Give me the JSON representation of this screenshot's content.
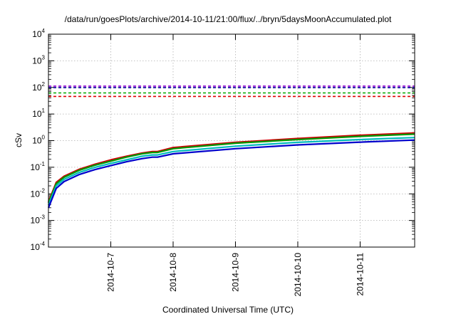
{
  "chart_data": {
    "type": "line",
    "title": "/data/run/goesPlots/archive/2014-10-11/21:00/flux/../bryn/5daysMoonAccumulated.plot",
    "xlabel": "Coordinated Universal Time (UTC)",
    "ylabel": "cSv",
    "y_scale": "log",
    "ylim": [
      0.0001,
      10000
    ],
    "y_ticks": [
      {
        "base": "10",
        "exp": "-4",
        "value": 0.0001
      },
      {
        "base": "10",
        "exp": "-3",
        "value": 0.001
      },
      {
        "base": "10",
        "exp": "-2",
        "value": 0.01
      },
      {
        "base": "10",
        "exp": "-1",
        "value": 0.1
      },
      {
        "base": "10",
        "exp": "0",
        "value": 1
      },
      {
        "base": "10",
        "exp": "1",
        "value": 10
      },
      {
        "base": "10",
        "exp": "2",
        "value": 100
      },
      {
        "base": "10",
        "exp": "3",
        "value": 1000
      },
      {
        "base": "10",
        "exp": "4",
        "value": 10000
      }
    ],
    "xlim": [
      "2014-10-06 00:00",
      "2014-10-11 21:00"
    ],
    "x_ticks": [
      "2014-10-7",
      "2014-10-8",
      "2014-10-9",
      "2014-10-10",
      "2014-10-11"
    ],
    "x_tick_dates": [
      "2014-10-07 00:00",
      "2014-10-08 00:00",
      "2014-10-09 00:00",
      "2014-10-10 00:00",
      "2014-10-11 00:00"
    ],
    "grid": true,
    "legend": "none",
    "series": [
      {
        "color": "#cc0000",
        "style": "solid",
        "width": 2.2,
        "x": [
          "2014-10-06 00:00",
          "2014-10-06 03:00",
          "2014-10-06 06:00",
          "2014-10-06 12:00",
          "2014-10-06 18:00",
          "2014-10-07 00:00",
          "2014-10-07 06:00",
          "2014-10-07 12:00",
          "2014-10-07 16:00",
          "2014-10-07 18:00",
          "2014-10-08 00:00",
          "2014-10-09 00:00",
          "2014-10-10 00:00",
          "2014-10-11 00:00",
          "2014-10-11 21:00"
        ],
        "y": [
          0.005,
          0.027,
          0.046,
          0.085,
          0.13,
          0.19,
          0.26,
          0.34,
          0.39,
          0.39,
          0.55,
          0.87,
          1.2,
          1.6,
          1.95
        ]
      },
      {
        "color": "#009900",
        "style": "solid",
        "width": 2.2,
        "x": [
          "2014-10-06 00:00",
          "2014-10-06 03:00",
          "2014-10-06 06:00",
          "2014-10-06 12:00",
          "2014-10-06 18:00",
          "2014-10-07 00:00",
          "2014-10-07 06:00",
          "2014-10-07 12:00",
          "2014-10-07 16:00",
          "2014-10-07 18:00",
          "2014-10-08 00:00",
          "2014-10-09 00:00",
          "2014-10-10 00:00",
          "2014-10-11 00:00",
          "2014-10-11 21:00"
        ],
        "y": [
          0.0045,
          0.024,
          0.042,
          0.078,
          0.12,
          0.17,
          0.24,
          0.32,
          0.36,
          0.36,
          0.5,
          0.8,
          1.1,
          1.45,
          1.75
        ]
      },
      {
        "color": "#00bbbb",
        "style": "solid",
        "width": 2.2,
        "x": [
          "2014-10-06 00:00",
          "2014-10-06 03:00",
          "2014-10-06 06:00",
          "2014-10-06 12:00",
          "2014-10-06 18:00",
          "2014-10-07 00:00",
          "2014-10-07 06:00",
          "2014-10-07 12:00",
          "2014-10-07 16:00",
          "2014-10-07 18:00",
          "2014-10-08 00:00",
          "2014-10-09 00:00",
          "2014-10-10 00:00",
          "2014-10-11 00:00",
          "2014-10-11 21:00"
        ],
        "y": [
          0.0038,
          0.02,
          0.035,
          0.065,
          0.1,
          0.14,
          0.19,
          0.26,
          0.29,
          0.29,
          0.39,
          0.62,
          0.86,
          1.1,
          1.3
        ]
      },
      {
        "color": "#0000cc",
        "style": "solid",
        "width": 2.2,
        "x": [
          "2014-10-06 00:00",
          "2014-10-06 03:00",
          "2014-10-06 06:00",
          "2014-10-06 12:00",
          "2014-10-06 18:00",
          "2014-10-07 00:00",
          "2014-10-07 06:00",
          "2014-10-07 12:00",
          "2014-10-07 16:00",
          "2014-10-07 18:00",
          "2014-10-08 00:00",
          "2014-10-09 00:00",
          "2014-10-10 00:00",
          "2014-10-11 00:00",
          "2014-10-11 21:00"
        ],
        "y": [
          0.003,
          0.016,
          0.029,
          0.054,
          0.082,
          0.115,
          0.16,
          0.21,
          0.24,
          0.24,
          0.32,
          0.5,
          0.69,
          0.88,
          1.05
        ]
      },
      {
        "color": "#9400d3",
        "style": "dashed",
        "width": 1.6,
        "x": [
          "2014-10-06 00:00",
          "2014-10-11 21:00"
        ],
        "y": [
          112,
          112
        ]
      },
      {
        "color": "#000099",
        "style": "dashed",
        "width": 1.6,
        "x": [
          "2014-10-06 00:00",
          "2014-10-11 21:00"
        ],
        "y": [
          98,
          98
        ]
      },
      {
        "color": "#00aa00",
        "style": "dashed",
        "width": 1.6,
        "x": [
          "2014-10-06 00:00",
          "2014-10-11 21:00"
        ],
        "y": [
          62,
          62
        ]
      },
      {
        "color": "#dd0000",
        "style": "dashed",
        "width": 1.6,
        "x": [
          "2014-10-06 00:00",
          "2014-10-11 21:00"
        ],
        "y": [
          46,
          46
        ]
      }
    ]
  }
}
